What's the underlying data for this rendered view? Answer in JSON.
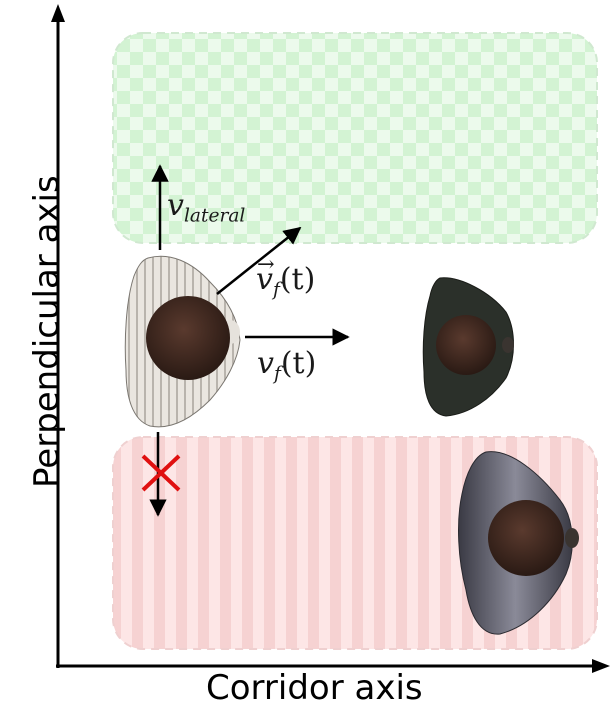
{
  "axes": {
    "x_label": "Corridor axis",
    "y_label": "Perpendicular axis"
  },
  "zones": {
    "allowed_color": "#c8f0c8",
    "forbidden_color": "#f7caca"
  },
  "velocity_labels": {
    "lateral_symbol": "v",
    "lateral_subscript": "lateral",
    "vector_symbol": "v",
    "vector_subscript": "f",
    "vector_arg": "(t)",
    "forward_symbol": "v",
    "forward_subscript": "f",
    "forward_arg": "(t)"
  },
  "markers": {
    "blocked_color": "#e01010"
  },
  "icons": [
    "person-top-view-icon",
    "blocked-cross-icon"
  ]
}
